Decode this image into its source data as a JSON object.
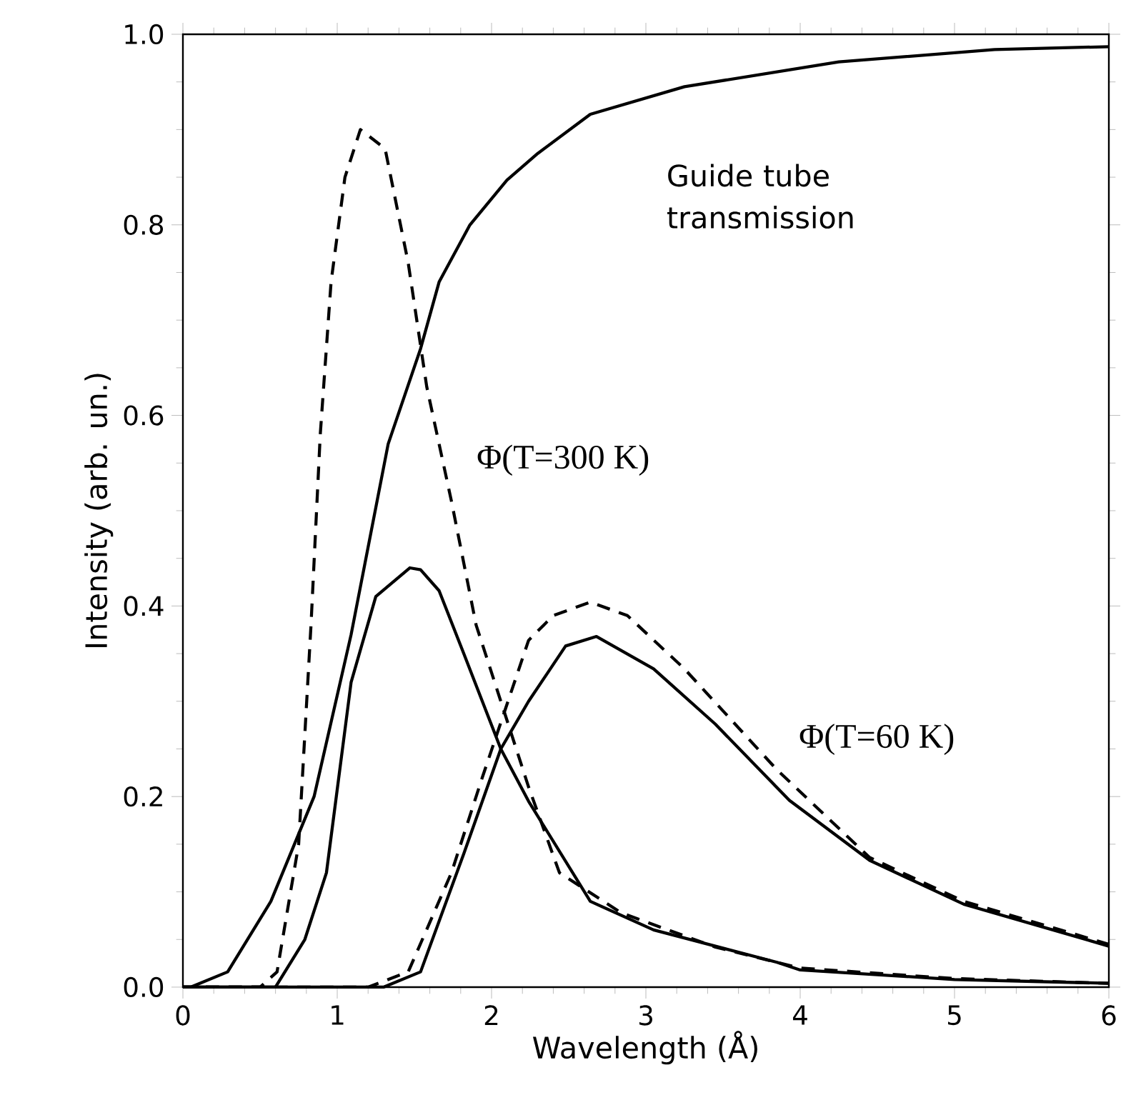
{
  "chart_data": {
    "type": "line",
    "xlabel": "Wavelength (Å)",
    "ylabel": "Intensity (arb. un.)",
    "xlim": [
      0,
      6
    ],
    "ylim": [
      0,
      1
    ],
    "xticks": [
      0,
      1,
      2,
      3,
      4,
      5,
      6
    ],
    "yticks": [
      {
        "value": 0,
        "label": "0.0"
      },
      {
        "value": 0.2,
        "label": "0.2"
      },
      {
        "value": 0.4,
        "label": "0.4"
      },
      {
        "value": 0.6,
        "label": "0.6"
      },
      {
        "value": 0.8,
        "label": "0.8"
      },
      {
        "value": 1,
        "label": "1.0"
      }
    ],
    "marker": "none",
    "series": [
      {
        "color": "#000000",
        "line_style": "solid",
        "x": [
          0,
          0.05,
          0.29,
          0.57,
          0.85,
          1.09,
          1.33,
          1.54,
          1.66,
          1.86,
          2.1,
          2.3,
          2.64,
          3.25,
          4.25,
          5.26,
          6
        ],
        "values": [
          0,
          0,
          0.016,
          0.09,
          0.2,
          0.37,
          0.57,
          0.67,
          0.74,
          0.8,
          0.847,
          0.875,
          0.916,
          0.945,
          0.971,
          0.984,
          0.987
        ]
      },
      {
        "color": "#000000",
        "line_style": "dashed",
        "x": [
          0,
          0.5,
          0.61,
          0.75,
          0.83,
          0.89,
          0.96,
          1.05,
          1.15,
          1.31,
          1.46,
          1.58,
          1.74,
          1.9,
          2.06,
          2.24,
          2.44,
          2.84,
          3.45,
          4,
          5,
          6
        ],
        "values": [
          0,
          0,
          0.016,
          0.15,
          0.38,
          0.58,
          0.74,
          0.85,
          0.9,
          0.88,
          0.76,
          0.63,
          0.51,
          0.38,
          0.3,
          0.21,
          0.12,
          0.078,
          0.042,
          0.02,
          0.009,
          0.004
        ]
      },
      {
        "color": "#000000",
        "line_style": "solid",
        "x": [
          0,
          0.6,
          0.79,
          0.93,
          1.09,
          1.25,
          1.47,
          1.54,
          1.66,
          1.82,
          2.06,
          2.24,
          2.64,
          3.05,
          3.85,
          4,
          5,
          6
        ],
        "values": [
          0,
          0,
          0.05,
          0.12,
          0.32,
          0.41,
          0.44,
          0.438,
          0.416,
          0.35,
          0.25,
          0.195,
          0.09,
          0.06,
          0.026,
          0.018,
          0.008,
          0.004
        ]
      },
      {
        "color": "#000000",
        "line_style": "dashed",
        "x": [
          0,
          1.2,
          1.46,
          1.74,
          1.94,
          2.24,
          2.4,
          2.64,
          2.88,
          3.25,
          3.85,
          4.45,
          5.06,
          6
        ],
        "values": [
          0,
          0,
          0.016,
          0.12,
          0.22,
          0.364,
          0.39,
          0.404,
          0.39,
          0.334,
          0.228,
          0.136,
          0.09,
          0.045
        ]
      },
      {
        "color": "#000000",
        "line_style": "solid",
        "x": [
          0,
          1.3,
          1.54,
          1.82,
          2.06,
          2.24,
          2.48,
          2.68,
          3.05,
          3.45,
          3.93,
          4.45,
          5.06,
          6
        ],
        "values": [
          0,
          0,
          0.016,
          0.14,
          0.25,
          0.3,
          0.358,
          0.368,
          0.334,
          0.276,
          0.196,
          0.133,
          0.087,
          0.043
        ]
      }
    ],
    "annotations": [
      "Guide tube transmission",
      "Φ(T=300 K)",
      "Φ(T=60 K)"
    ]
  }
}
